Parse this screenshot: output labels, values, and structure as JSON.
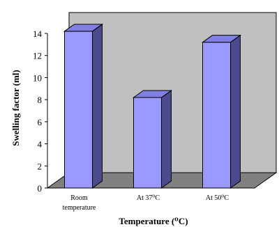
{
  "chart_data": {
    "type": "bar",
    "categories": [
      "Room temperature",
      "At 37⁰C",
      "At 50⁰C"
    ],
    "category_labels": [
      [
        "Room",
        "temperature"
      ],
      [
        "At 37⁰C"
      ],
      [
        "At 50⁰C"
      ]
    ],
    "values": [
      14.2,
      8.2,
      13.2
    ],
    "ylim": [
      0,
      14
    ],
    "yticks": [
      0,
      2,
      4,
      6,
      8,
      10,
      12,
      14
    ],
    "xlabel": "Temperature (⁰C)",
    "ylabel": "Swelling factor (ml)",
    "style": "3d-column",
    "grid": false,
    "colors": {
      "bar_front": "#9999ff",
      "bar_top": "#8080e0",
      "bar_side": "#4a4a8c",
      "wall": "#c0c0c0",
      "floor": "#808080",
      "outline": "#000000"
    }
  }
}
